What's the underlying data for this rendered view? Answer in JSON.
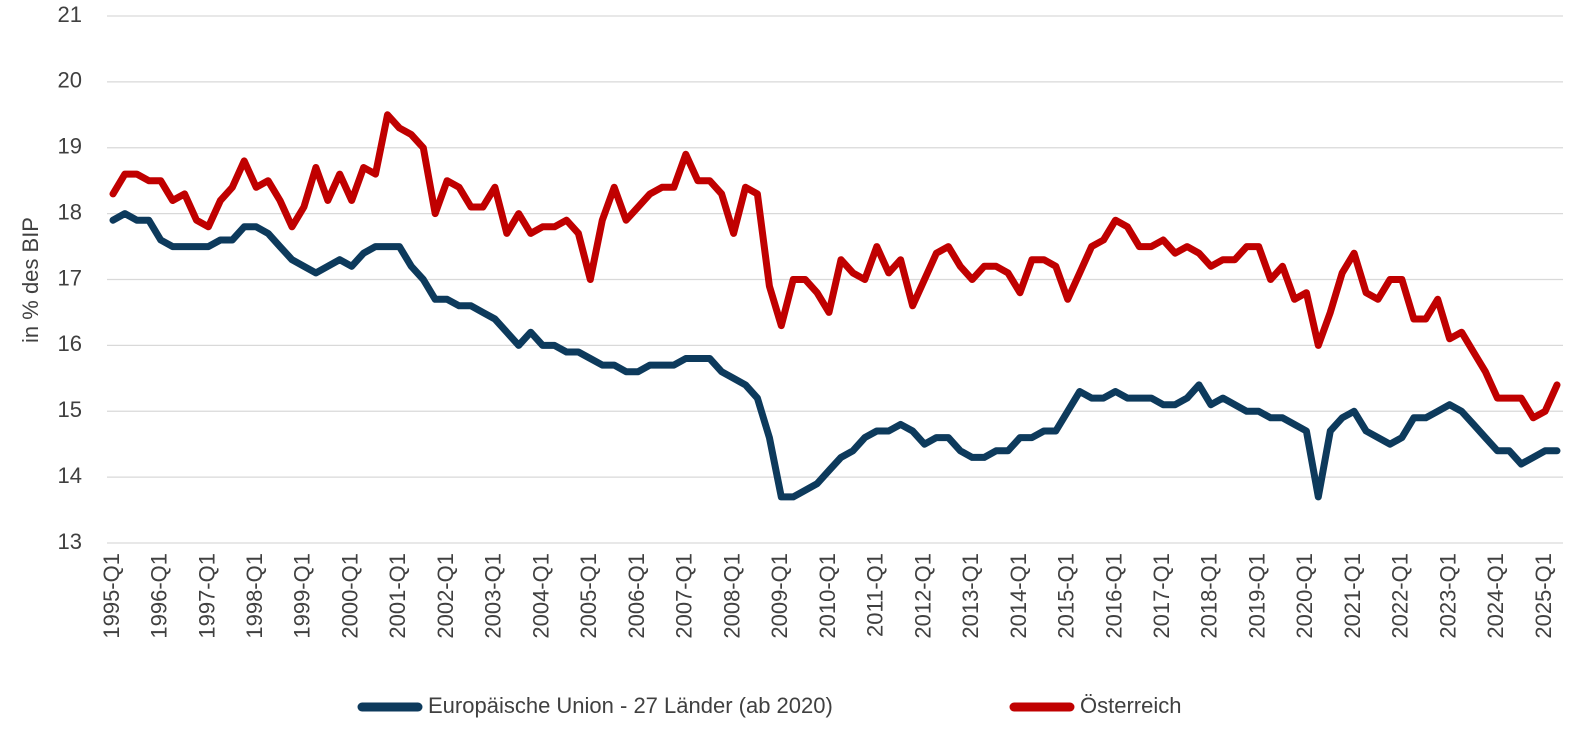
{
  "chart_data": {
    "type": "line",
    "y_label": "in % des BIP",
    "categories": [
      "1995-Q1",
      null,
      null,
      null,
      "1996-Q1",
      null,
      null,
      null,
      "1997-Q1",
      null,
      null,
      null,
      "1998-Q1",
      null,
      null,
      null,
      "1999-Q1",
      null,
      null,
      null,
      "2000-Q1",
      null,
      null,
      null,
      "2001-Q1",
      null,
      null,
      null,
      "2002-Q1",
      null,
      null,
      null,
      "2003-Q1",
      null,
      null,
      null,
      "2004-Q1",
      null,
      null,
      null,
      "2005-Q1",
      null,
      null,
      null,
      "2006-Q1",
      null,
      null,
      null,
      "2007-Q1",
      null,
      null,
      null,
      "2008-Q1",
      null,
      null,
      null,
      "2009-Q1",
      null,
      null,
      null,
      "2010-Q1",
      null,
      null,
      null,
      "2011-Q1",
      null,
      null,
      null,
      "2012-Q1",
      null,
      null,
      null,
      "2013-Q1",
      null,
      null,
      null,
      "2014-Q1",
      null,
      null,
      null,
      "2015-Q1",
      null,
      null,
      null,
      "2016-Q1",
      null,
      null,
      null,
      "2017-Q1",
      null,
      null,
      null,
      "2018-Q1",
      null,
      null,
      null,
      "2019-Q1",
      null,
      null,
      null,
      "2020-Q1",
      null,
      null,
      null,
      "2021-Q1",
      null,
      null,
      null,
      "2022-Q1",
      null,
      null,
      null,
      "2023-Q1",
      null,
      null,
      null,
      "2024-Q1",
      null,
      null,
      null,
      "2025-Q1",
      null
    ],
    "series": [
      {
        "name": "Europäische Union - 27 Länder (ab 2020)",
        "color": "#0d3a5c",
        "values": [
          17.9,
          18.0,
          17.9,
          17.9,
          17.6,
          17.5,
          17.5,
          17.5,
          17.5,
          17.6,
          17.6,
          17.8,
          17.8,
          17.7,
          17.5,
          17.3,
          17.2,
          17.1,
          17.2,
          17.3,
          17.2,
          17.4,
          17.5,
          17.5,
          17.5,
          17.2,
          17.0,
          16.7,
          16.7,
          16.6,
          16.6,
          16.5,
          16.4,
          16.2,
          16.0,
          16.2,
          16.0,
          16.0,
          15.9,
          15.9,
          15.8,
          15.7,
          15.7,
          15.6,
          15.6,
          15.7,
          15.7,
          15.7,
          15.8,
          15.8,
          15.8,
          15.6,
          15.5,
          15.4,
          15.2,
          14.6,
          13.7,
          13.7,
          13.8,
          13.9,
          14.1,
          14.3,
          14.4,
          14.6,
          14.7,
          14.7,
          14.8,
          14.7,
          14.5,
          14.6,
          14.6,
          14.4,
          14.3,
          14.3,
          14.4,
          14.4,
          14.6,
          14.6,
          14.7,
          14.7,
          15.0,
          15.3,
          15.2,
          15.2,
          15.3,
          15.2,
          15.2,
          15.2,
          15.1,
          15.1,
          15.2,
          15.4,
          15.1,
          15.2,
          15.1,
          15.0,
          15.0,
          14.9,
          14.9,
          14.8,
          14.7,
          13.7,
          14.7,
          14.9,
          15.0,
          14.7,
          14.6,
          14.5,
          14.6,
          14.9,
          14.9,
          15.0,
          15.1,
          15.0,
          14.8,
          14.6,
          14.4,
          14.4,
          14.2,
          14.3,
          14.4,
          14.4
        ]
      },
      {
        "name": "Österreich",
        "color": "#c00000",
        "values": [
          18.3,
          18.6,
          18.6,
          18.5,
          18.5,
          18.2,
          18.3,
          17.9,
          17.8,
          18.2,
          18.4,
          18.8,
          18.4,
          18.5,
          18.2,
          17.8,
          18.1,
          18.7,
          18.2,
          18.6,
          18.2,
          18.7,
          18.6,
          19.5,
          19.3,
          19.2,
          19.0,
          18.0,
          18.5,
          18.4,
          18.1,
          18.1,
          18.4,
          17.7,
          18.0,
          17.7,
          17.8,
          17.8,
          17.9,
          17.7,
          17.0,
          17.9,
          18.4,
          17.9,
          18.1,
          18.3,
          18.4,
          18.4,
          18.9,
          18.5,
          18.5,
          18.3,
          17.7,
          18.4,
          18.3,
          16.9,
          16.3,
          17.0,
          17.0,
          16.8,
          16.5,
          17.3,
          17.1,
          17.0,
          17.5,
          17.1,
          17.3,
          16.6,
          17.0,
          17.4,
          17.5,
          17.2,
          17.0,
          17.2,
          17.2,
          17.1,
          16.8,
          17.3,
          17.3,
          17.2,
          16.7,
          17.1,
          17.5,
          17.6,
          17.9,
          17.8,
          17.5,
          17.5,
          17.6,
          17.4,
          17.5,
          17.4,
          17.2,
          17.3,
          17.3,
          17.5,
          17.5,
          17.0,
          17.2,
          16.7,
          16.8,
          16.0,
          16.5,
          17.1,
          17.4,
          16.8,
          16.7,
          17.0,
          17.0,
          16.4,
          16.4,
          16.7,
          16.1,
          16.2,
          15.9,
          15.6,
          15.2,
          15.2,
          15.2,
          14.9,
          15.0,
          15.4
        ]
      }
    ],
    "ylim": [
      13,
      21
    ],
    "yticks": [
      13,
      14,
      15,
      16,
      17,
      18,
      19,
      20,
      21
    ],
    "grid": true,
    "legend": "bottom"
  }
}
